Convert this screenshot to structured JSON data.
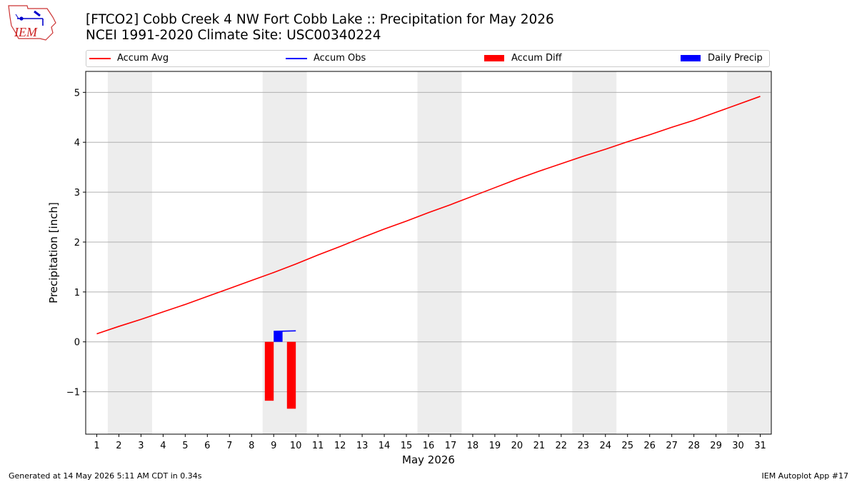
{
  "header": {
    "logo_text": "IEM",
    "title_line1": "[FTCO2] Cobb Creek 4 NW Fort Cobb Lake :: Precipitation for May 2026",
    "title_line2": "NCEI 1991-2020 Climate Site: USC00340224"
  },
  "legend": {
    "placement": "top (above plot, full width)",
    "items": [
      {
        "label": "Accum Avg",
        "color": "#ff0000",
        "kind": "line"
      },
      {
        "label": "Accum Obs",
        "color": "#0000ff",
        "kind": "line"
      },
      {
        "label": "Accum Diff",
        "color": "#ff0000",
        "kind": "bar"
      },
      {
        "label": "Daily Precip",
        "color": "#0000ff",
        "kind": "bar"
      }
    ]
  },
  "footer": {
    "left": "Generated at 14 May 2026 5:11 AM CDT in 0.34s",
    "right": "IEM Autoplot App #17"
  },
  "chart_data": {
    "type": "line",
    "xlabel": "May 2026",
    "ylabel": "Precipitation [inch]",
    "xlim": [
      0.5,
      31.5
    ],
    "ylim": [
      -1.85,
      5.42
    ],
    "yticks": [
      -1,
      0,
      1,
      2,
      3,
      4,
      5
    ],
    "ytick_labels": [
      "−1",
      "0",
      "1",
      "2",
      "3",
      "4",
      "5"
    ],
    "x": [
      1,
      2,
      3,
      4,
      5,
      6,
      7,
      8,
      9,
      10,
      11,
      12,
      13,
      14,
      15,
      16,
      17,
      18,
      19,
      20,
      21,
      22,
      23,
      24,
      25,
      26,
      27,
      28,
      29,
      30,
      31
    ],
    "xtick_labels": [
      "1",
      "2",
      "3",
      "4",
      "5",
      "6",
      "7",
      "8",
      "9",
      "10",
      "11",
      "12",
      "13",
      "14",
      "15",
      "16",
      "17",
      "18",
      "19",
      "20",
      "21",
      "22",
      "23",
      "24",
      "25",
      "26",
      "27",
      "28",
      "29",
      "30",
      "31"
    ],
    "grid": "horizontal",
    "weekend_shading": [
      [
        1.5,
        3.5
      ],
      [
        8.5,
        10.5
      ],
      [
        15.5,
        17.5
      ],
      [
        22.5,
        24.5
      ],
      [
        29.5,
        31.5
      ]
    ],
    "series": [
      {
        "name": "Accum Avg",
        "type": "line",
        "color": "#ff0000",
        "values": [
          0.16,
          0.31,
          0.45,
          0.6,
          0.75,
          0.91,
          1.07,
          1.23,
          1.39,
          1.56,
          1.74,
          1.91,
          2.09,
          2.26,
          2.42,
          2.59,
          2.75,
          2.92,
          3.09,
          3.26,
          3.42,
          3.57,
          3.72,
          3.86,
          4.01,
          4.15,
          4.3,
          4.44,
          4.6,
          4.76,
          4.92
        ]
      },
      {
        "name": "Accum Obs",
        "type": "line",
        "color": "#0000ff",
        "x": [
          9,
          10
        ],
        "values": [
          0.21,
          0.22
        ]
      },
      {
        "name": "Accum Diff",
        "type": "bar",
        "color": "#ff0000",
        "x": [
          9,
          10
        ],
        "values": [
          -1.18,
          -1.34
        ]
      },
      {
        "name": "Daily Precip",
        "type": "bar",
        "color": "#0000ff",
        "x": [
          9
        ],
        "values": [
          0.21
        ]
      }
    ]
  }
}
